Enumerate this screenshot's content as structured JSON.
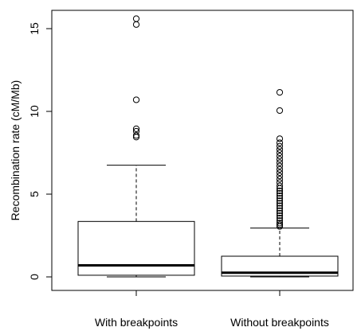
{
  "chart_data": {
    "type": "boxplot",
    "ylabel": "Recombination rate (cM/Mb)",
    "xlabel": "",
    "title": "",
    "ylim": [
      -1,
      16
    ],
    "yticks": [
      0,
      5,
      10,
      15
    ],
    "categories": [
      "With breakpoints",
      "Without breakpoints"
    ],
    "boxes": [
      {
        "category": "With breakpoints",
        "whisker_low": 0.0,
        "q1": 0.1,
        "median": 0.7,
        "q3": 3.35,
        "whisker_high": 6.75,
        "outliers": [
          8.45,
          8.55,
          8.8,
          8.95,
          10.7,
          15.25,
          15.6
        ]
      },
      {
        "category": "Without breakpoints",
        "whisker_low": 0.0,
        "q1": 0.05,
        "median": 0.25,
        "q3": 1.25,
        "whisker_high": 2.95,
        "outliers": [
          3.05,
          3.15,
          3.25,
          3.4,
          3.55,
          3.7,
          3.85,
          4.0,
          4.15,
          4.3,
          4.45,
          4.6,
          4.75,
          4.9,
          5.05,
          5.2,
          5.35,
          5.5,
          5.7,
          5.9,
          6.1,
          6.3,
          6.5,
          6.7,
          6.9,
          7.1,
          7.3,
          7.5,
          7.7,
          7.9,
          8.1,
          8.35,
          10.05,
          11.15
        ]
      }
    ],
    "grid": false,
    "legend": "none"
  }
}
